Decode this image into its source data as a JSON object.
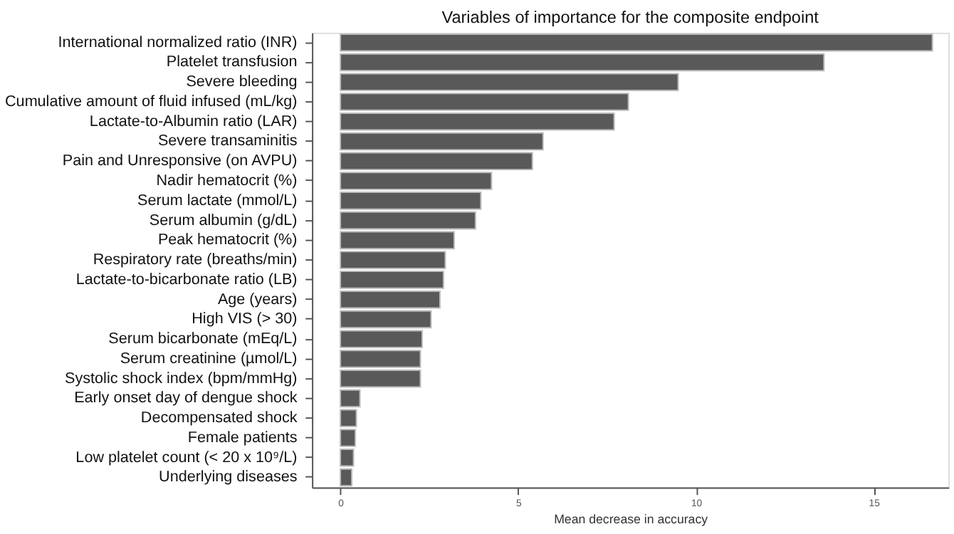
{
  "chart_data": {
    "type": "bar",
    "orientation": "horizontal",
    "title": "Variables of importance for the composite endpoint",
    "xlabel": "Mean decrease in accuracy",
    "categories": [
      "International normalized ratio (INR)",
      "Platelet transfusion",
      "Severe bleeding",
      "Cumulative amount of fluid infused (mL/kg)",
      "Lactate-to-Albumin ratio (LAR)",
      "Severe transaminitis",
      "Pain and Unresponsive (on AVPU)",
      "Nadir hematocrit (%)",
      "Serum lactate (mmol/L)",
      "Serum albumin (g/dL)",
      "Peak hematocrit (%)",
      "Respiratory rate (breaths/min)",
      "Lactate-to-bicarbonate ratio (LB)",
      "Age (years)",
      "High VIS (> 30)",
      "Serum bicarbonate (mEq/L)",
      "Serum creatinine (µmol/L)",
      "Systolic shock index (bpm/mmHg)",
      "Early onset day of dengue shock",
      "Decompensated shock",
      "Female patients",
      "Low platelet count (< 20 x 10⁹/L)",
      "Underlying diseases"
    ],
    "values": [
      16.65,
      13.6,
      9.5,
      8.1,
      7.7,
      5.7,
      5.4,
      4.25,
      3.95,
      3.8,
      3.2,
      2.95,
      2.9,
      2.8,
      2.55,
      2.3,
      2.25,
      2.25,
      0.55,
      0.45,
      0.42,
      0.37,
      0.32
    ],
    "color": "#595959",
    "xlim": [
      -0.8,
      17.1
    ],
    "xticks": [
      0,
      5,
      10,
      15
    ],
    "grid": false
  }
}
